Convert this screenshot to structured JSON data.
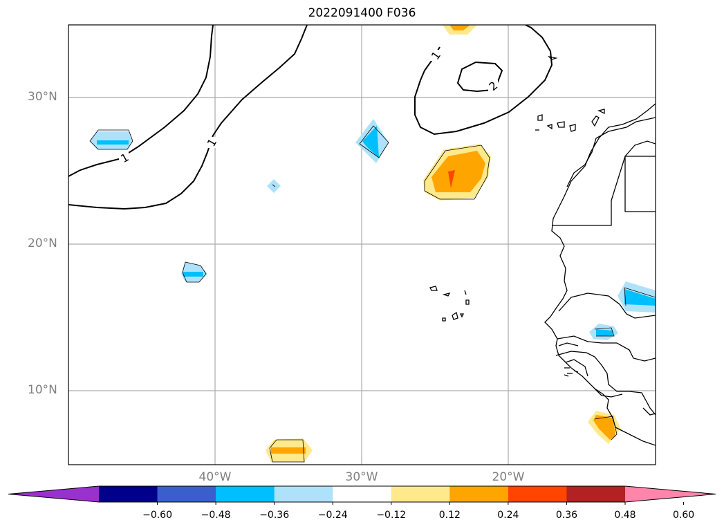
{
  "title": "2022091400 F036",
  "map": {
    "lat_labels": [
      "30°N",
      "20°N",
      "10°N"
    ],
    "lon_labels": [
      "40°W",
      "30°W",
      "20°W"
    ],
    "contour_labels": [
      "1",
      "1",
      "1",
      "2"
    ]
  },
  "colorbar": {
    "ticks": [
      "−0.60",
      "−0.48",
      "−0.36",
      "−0.24",
      "−0.12",
      "0.12",
      "0.24",
      "0.36",
      "0.48",
      "0.60"
    ],
    "colors": [
      "#9932cc",
      "#00008b",
      "#3a5fcd",
      "#00bfff",
      "#aee2fa",
      "#ffffff",
      "#fee98c",
      "#ffa500",
      "#ff4500",
      "#b22222",
      "#ff85aa"
    ]
  }
}
